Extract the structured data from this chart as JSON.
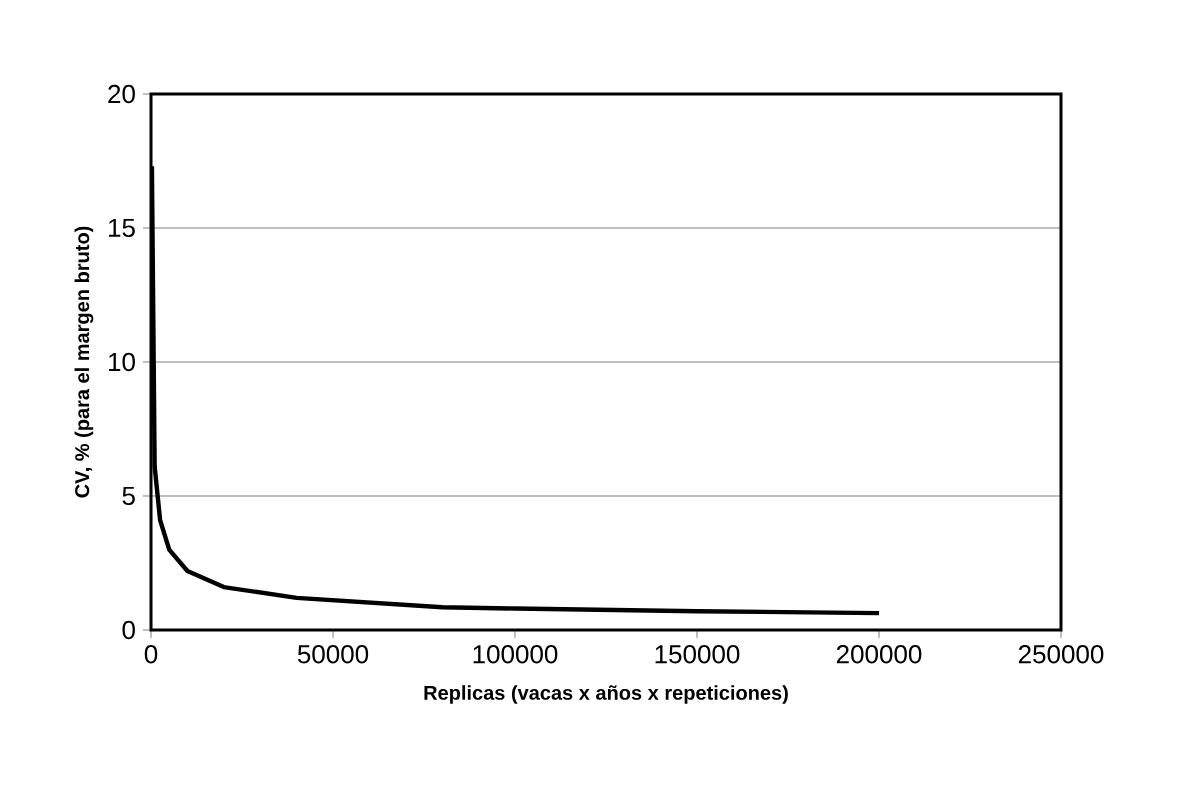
{
  "chart_data": {
    "type": "line",
    "xlabel": "Replicas (vacas x años x repeticiones)",
    "ylabel": "CV, % (para el margen bruto)",
    "x": [
      250,
      1000,
      2500,
      5000,
      10000,
      20000,
      40000,
      80000,
      100000,
      150000,
      200000
    ],
    "series": [
      {
        "color": "#000000",
        "values": [
          17.3,
          6.1,
          4.1,
          3.0,
          2.2,
          1.6,
          1.2,
          0.85,
          0.8,
          0.7,
          0.63
        ]
      }
    ],
    "xlim": [
      0,
      250000
    ],
    "ylim": [
      0,
      20
    ],
    "xticks": [
      0,
      50000,
      100000,
      150000,
      200000,
      250000
    ],
    "yticks": [
      0,
      5,
      10,
      15,
      20
    ],
    "grid": "y",
    "marker": "none",
    "line_style": "solid"
  }
}
